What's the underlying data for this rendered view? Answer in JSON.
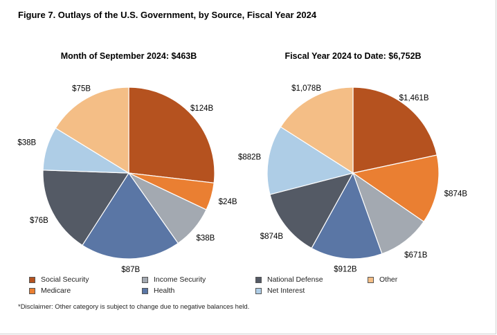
{
  "figure_title": "Figure 7. Outlays of the U.S. Government, by Source, Fiscal Year 2024",
  "disclaimer": "*Disclaimer: Other category is subject to change due to negative balances held.",
  "colors": {
    "Social Security": "#b5521f",
    "Medicare": "#ea7f32",
    "Income Security": "#a3a9b1",
    "Health": "#5a76a5",
    "National Defense": "#545a65",
    "Net Interest": "#aecde6",
    "Other": "#f4be86"
  },
  "legend": [
    {
      "label": "Social Security"
    },
    {
      "label": "Medicare"
    },
    {
      "label": "Income Security"
    },
    {
      "label": "Health"
    },
    {
      "label": "National Defense"
    },
    {
      "label": "Net Interest"
    },
    {
      "label": "Other"
    }
  ],
  "chart_data": [
    {
      "type": "pie",
      "title": "Month of September 2024: $463B",
      "categories": [
        "Social Security",
        "Medicare",
        "Income Security",
        "Health",
        "National Defense",
        "Net Interest",
        "Other"
      ],
      "values": [
        124,
        24,
        38,
        87,
        76,
        38,
        75
      ],
      "labels": [
        "$124B",
        "$24B",
        "$38B",
        "$87B",
        "$76B",
        "$38B",
        "$75B"
      ],
      "start": "12 o'clock, clockwise"
    },
    {
      "type": "pie",
      "title": "Fiscal Year 2024 to Date: $6,752B",
      "categories": [
        "Social Security",
        "Medicare",
        "Income Security",
        "Health",
        "National Defense",
        "Net Interest",
        "Other"
      ],
      "values": [
        1461,
        874,
        671,
        912,
        874,
        882,
        1078
      ],
      "labels": [
        "$1,461B",
        "$874B",
        "$671B",
        "$912B",
        "$874B",
        "$882B",
        "$1,078B"
      ],
      "start": "12 o'clock, clockwise"
    }
  ]
}
